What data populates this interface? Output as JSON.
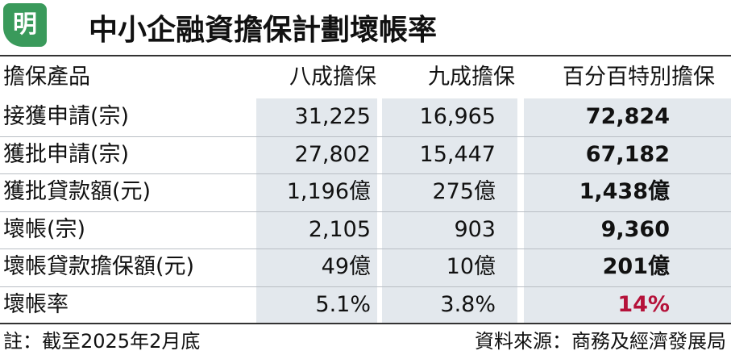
{
  "header": {
    "logo": "明",
    "title": "中小企融資擔保計劃壞帳率"
  },
  "table": {
    "columns": [
      "擔保產品",
      "八成擔保",
      "九成擔保",
      "百分百特別擔保"
    ],
    "rows": [
      [
        "接獲申請(宗)",
        "31,225",
        "16,965",
        "72,824"
      ],
      [
        "獲批申請(宗)",
        "27,802",
        "15,447",
        "67,182"
      ],
      [
        "獲批貸款額(元)",
        "1,196億",
        "275億",
        "1,438億"
      ],
      [
        "壞帳(宗)",
        "2,105",
        "903",
        "9,360"
      ],
      [
        "壞帳貸款擔保額(元)",
        "49億",
        "10億",
        "201億"
      ],
      [
        "壞帳率",
        "5.1%",
        "3.8%",
        "14%"
      ]
    ]
  },
  "footer": {
    "note": "註：截至2025年2月底",
    "source": "資料來源：商務及經濟發展局"
  }
}
